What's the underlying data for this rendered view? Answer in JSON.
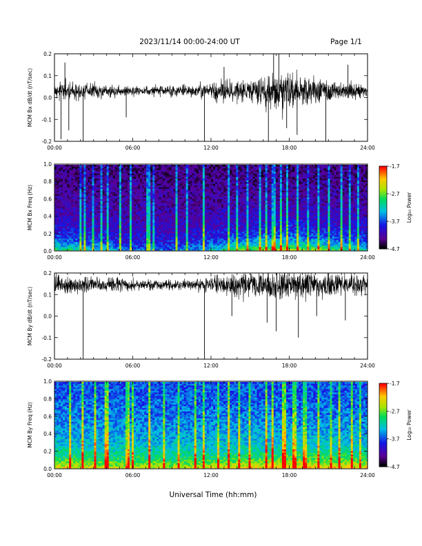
{
  "header": {
    "title": "2023/11/14  00:00-24:00 UT",
    "page": "Page 1/1"
  },
  "x_axis_label": "Universal Time (hh:mm)",
  "colorbar": {
    "label": "Log₁₀ Power",
    "ticks": [
      "-1.7",
      "-2.7",
      "-3.7",
      "-4.7"
    ],
    "range": [
      -4.7,
      -1.7
    ]
  },
  "chart_data": [
    {
      "type": "line",
      "ylabel": "MCM Bx dB/dt (nT/sec)",
      "xlim": [
        0,
        24
      ],
      "ylim": [
        -0.2,
        0.2
      ],
      "x_ticks": [
        "00:00",
        "06:00",
        "12:00",
        "18:00",
        "24:00"
      ],
      "y_ticks": [
        "0.2",
        "0.1",
        "0.0",
        "-0.1",
        "-0.2"
      ],
      "baseline": 0.03,
      "noise_amplitude": [
        [
          0,
          0.055
        ],
        [
          2,
          0.05
        ],
        [
          4,
          0.035
        ],
        [
          6,
          0.03
        ],
        [
          8,
          0.03
        ],
        [
          10,
          0.035
        ],
        [
          11.5,
          0.04
        ],
        [
          12.5,
          0.065
        ],
        [
          14,
          0.07
        ],
        [
          15,
          0.06
        ],
        [
          16.5,
          0.1
        ],
        [
          17.5,
          0.12
        ],
        [
          18.5,
          0.1
        ],
        [
          20,
          0.075
        ],
        [
          22,
          0.05
        ],
        [
          24,
          0.035
        ]
      ],
      "spikes": [
        [
          0.5,
          -0.19
        ],
        [
          0.8,
          0.16
        ],
        [
          1.1,
          -0.15
        ],
        [
          2.2,
          -0.2
        ],
        [
          5.5,
          -0.09
        ],
        [
          11.5,
          -0.2
        ],
        [
          13.0,
          0.14
        ],
        [
          16.4,
          -0.2
        ],
        [
          16.8,
          0.2
        ],
        [
          17.2,
          0.2
        ],
        [
          17.8,
          -0.14
        ],
        [
          18.6,
          -0.17
        ],
        [
          20.8,
          -0.2
        ],
        [
          22.5,
          0.15
        ]
      ]
    },
    {
      "type": "heatmap",
      "ylabel": "MCM Bx Freq (Hz)",
      "xlim": [
        0,
        24
      ],
      "ylim": [
        0,
        1
      ],
      "x_ticks": [
        "00:00",
        "06:00",
        "12:00",
        "18:00",
        "24:00"
      ],
      "y_ticks": [
        "1.0",
        "0.8",
        "0.6",
        "0.4",
        "0.2",
        "0.0"
      ],
      "value_range": [
        -4.7,
        -1.7
      ],
      "background_level": -4.4,
      "low_freq_level": -3.0,
      "activity": [
        [
          0,
          0.7
        ],
        [
          4,
          0.5
        ],
        [
          6,
          0.3
        ],
        [
          10,
          0.35
        ],
        [
          12,
          0.5
        ],
        [
          14,
          0.75
        ],
        [
          16,
          0.85
        ],
        [
          18,
          0.95
        ],
        [
          20,
          0.85
        ],
        [
          22,
          0.7
        ],
        [
          24,
          0.55
        ]
      ],
      "bursts": [
        2.0,
        2.3,
        3.0,
        3.6,
        4.1,
        5.0,
        5.8,
        7.2,
        7.6,
        9.3,
        10.2,
        11.5,
        13.3,
        14.0,
        14.8,
        15.8,
        16.3,
        16.8,
        17.3,
        17.9,
        18.6,
        19.4,
        20.3,
        21.1,
        22.0,
        22.7,
        23.3
      ]
    },
    {
      "type": "line",
      "ylabel": "MCM By dB/dt (nT/sec)",
      "xlim": [
        0,
        24
      ],
      "ylim": [
        -0.2,
        0.2
      ],
      "x_ticks": [
        "00:00",
        "06:00",
        "12:00",
        "18:00",
        "24:00"
      ],
      "y_ticks": [
        "0.2",
        "0.1",
        "0.0",
        "-0.1",
        "-0.2"
      ],
      "baseline": 0.145,
      "noise_amplitude": [
        [
          0,
          0.06
        ],
        [
          2,
          0.05
        ],
        [
          4,
          0.045
        ],
        [
          6,
          0.035
        ],
        [
          8,
          0.03
        ],
        [
          10,
          0.03
        ],
        [
          11.5,
          0.04
        ],
        [
          12.5,
          0.06
        ],
        [
          14,
          0.07
        ],
        [
          16,
          0.085
        ],
        [
          17.5,
          0.095
        ],
        [
          19,
          0.085
        ],
        [
          21,
          0.075
        ],
        [
          22.5,
          0.065
        ],
        [
          24,
          0.05
        ]
      ],
      "spikes": [
        [
          2.2,
          -0.2
        ],
        [
          11.5,
          -0.2
        ],
        [
          13.6,
          0.0
        ],
        [
          16.3,
          -0.03
        ],
        [
          17.0,
          -0.07
        ],
        [
          18.7,
          -0.1
        ],
        [
          20.1,
          0.0
        ],
        [
          22.3,
          -0.02
        ]
      ]
    },
    {
      "type": "heatmap",
      "ylabel": "MCM By Freq (Hz)",
      "xlim": [
        0,
        24
      ],
      "ylim": [
        0,
        1
      ],
      "x_ticks": [
        "00:00",
        "06:00",
        "12:00",
        "18:00",
        "24:00"
      ],
      "y_ticks": [
        "1.0",
        "0.8",
        "0.6",
        "0.4",
        "0.2",
        "0.0"
      ],
      "value_range": [
        -4.7,
        -1.7
      ],
      "background_level": -3.7,
      "low_freq_level": -2.7,
      "activity": [
        [
          0,
          0.85
        ],
        [
          4,
          0.75
        ],
        [
          6,
          0.8
        ],
        [
          9,
          0.7
        ],
        [
          12,
          0.8
        ],
        [
          14,
          0.85
        ],
        [
          16,
          0.9
        ],
        [
          18,
          0.95
        ],
        [
          20,
          0.95
        ],
        [
          22,
          0.9
        ],
        [
          24,
          0.85
        ]
      ],
      "bursts": [
        1.2,
        2.2,
        3.1,
        4.0,
        5.6,
        6.0,
        7.3,
        8.4,
        9.5,
        10.8,
        11.5,
        12.6,
        13.4,
        14.2,
        15.0,
        16.2,
        16.7,
        17.6,
        18.4,
        19.2,
        20.2,
        21.2,
        21.9,
        22.8,
        23.5
      ]
    }
  ]
}
